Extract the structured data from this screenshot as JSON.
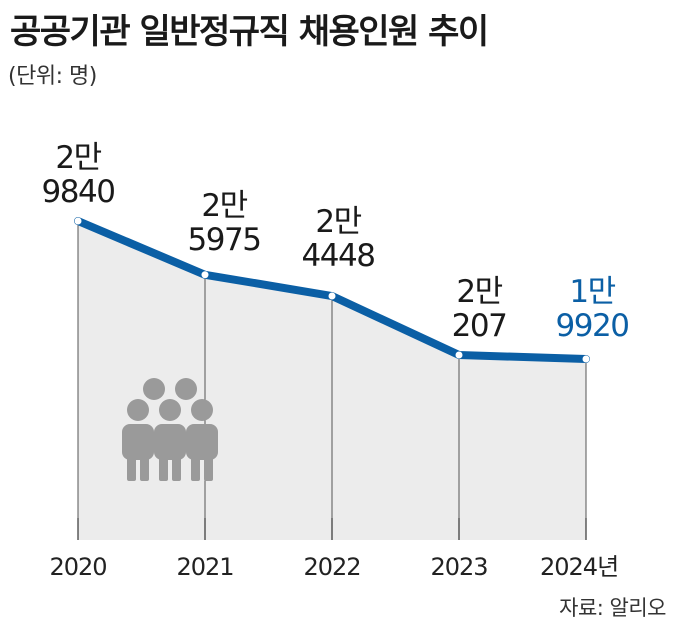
{
  "header": {
    "title": "공공기관 일반정규직 채용인원 추이",
    "unit": "(단위: 명)"
  },
  "footer": {
    "source": "자료: 알리오"
  },
  "colors": {
    "line": "#0b5fa5",
    "highlight_label": "#0b5fa5",
    "label": "#1a1a1a",
    "area": "#ececec",
    "icon": "#9a9a9a"
  },
  "icons": [
    "people-group-icon"
  ],
  "chart_data": {
    "type": "area",
    "x": [
      "2020",
      "2021",
      "2022",
      "2023",
      "2024"
    ],
    "x_tick_labels": [
      "2020",
      "2021",
      "2022",
      "2023",
      "2024년"
    ],
    "values": [
      29840,
      25975,
      24448,
      20207,
      19920
    ],
    "data_labels": [
      [
        "2만",
        "9840"
      ],
      [
        "2만",
        "5975"
      ],
      [
        "2만",
        "4448"
      ],
      [
        "2만",
        "207"
      ],
      [
        "1만",
        "9920"
      ]
    ],
    "highlight_index": 4,
    "title": "공공기관 일반정규직 채용인원 추이",
    "xlabel": "",
    "ylabel": "",
    "grid": false
  }
}
